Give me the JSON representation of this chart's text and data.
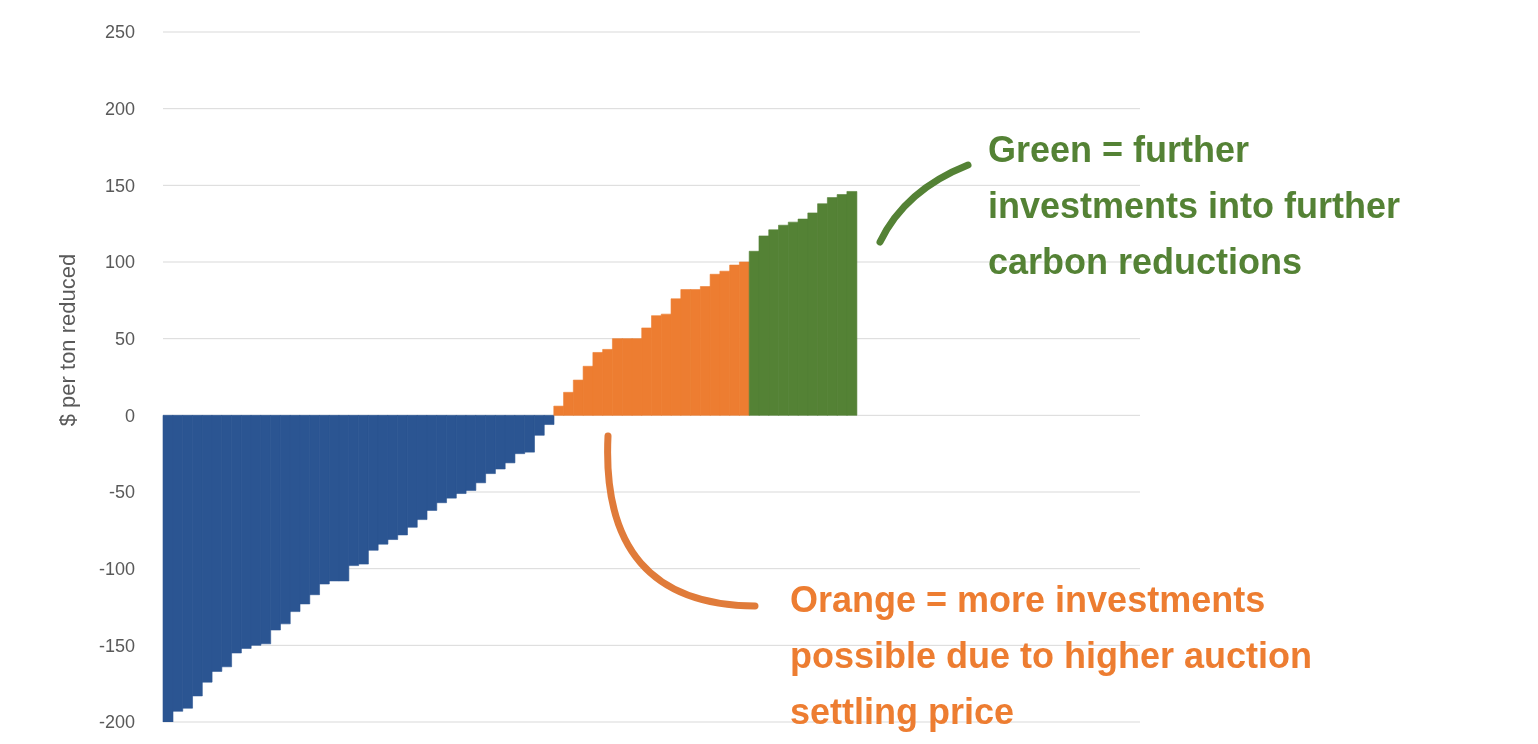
{
  "chart_data": {
    "type": "bar",
    "stacked": true,
    "ylabel": "$ per ton reduced",
    "ylim": [
      -200,
      250
    ],
    "yticks": [
      -200,
      -150,
      -100,
      -50,
      0,
      50,
      100,
      150,
      200,
      250
    ],
    "grid": "y",
    "tick_labels": "y",
    "categories": [
      null,
      null,
      null,
      null,
      null,
      null,
      null,
      null,
      null,
      null,
      null,
      null,
      null,
      null,
      null,
      null,
      null,
      null,
      null,
      null,
      null,
      null,
      null,
      null,
      null,
      null,
      null,
      null,
      null,
      null,
      null,
      null,
      null,
      null,
      null,
      null,
      null,
      null,
      null,
      null,
      null,
      null,
      null,
      null,
      null,
      null,
      null,
      null,
      null,
      null,
      null,
      null,
      null,
      null,
      null,
      null,
      null,
      null,
      null,
      null,
      null,
      null,
      null,
      null,
      null,
      null,
      null,
      null,
      null,
      null,
      null,
      null,
      null,
      null,
      null,
      null,
      null,
      null,
      null,
      null,
      null,
      null,
      null,
      null,
      null,
      null,
      null,
      null,
      null,
      null,
      null,
      null,
      null,
      null,
      null,
      null,
      null,
      null,
      null,
      null
    ],
    "series": [
      {
        "color": "#2b5592",
        "values": [
          -200,
          -193,
          -191,
          -183,
          -174,
          -167,
          -164,
          -155,
          -152,
          -150,
          -149,
          -140,
          -136,
          -128,
          -123,
          -117,
          -110,
          -108,
          -108,
          -98,
          -97,
          -88,
          -84,
          -81,
          -78,
          -73,
          -68,
          -62,
          -57,
          -54,
          -51,
          -49,
          -44,
          -38,
          -35,
          -31,
          -25,
          -24,
          -13,
          -6,
          null,
          null,
          null,
          null,
          null,
          null,
          null,
          null,
          null,
          null,
          null,
          null,
          null,
          null,
          null,
          null,
          null,
          null,
          null,
          null,
          null,
          null,
          null,
          null,
          null,
          null,
          null,
          null,
          null,
          null,
          null,
          null,
          null,
          null,
          null,
          null,
          null,
          null,
          null,
          null,
          null,
          null,
          null,
          null,
          null,
          null,
          null,
          null,
          null,
          null,
          null,
          null,
          null,
          null,
          null,
          null,
          null,
          null,
          null,
          null
        ]
      },
      {
        "color": "#ed7d31",
        "values": [
          null,
          null,
          null,
          null,
          null,
          null,
          null,
          null,
          null,
          null,
          null,
          null,
          null,
          null,
          null,
          null,
          null,
          null,
          null,
          null,
          null,
          null,
          null,
          null,
          null,
          null,
          null,
          null,
          null,
          null,
          null,
          null,
          null,
          null,
          null,
          null,
          null,
          null,
          null,
          null,
          6,
          15,
          23,
          32,
          41,
          43,
          50,
          50,
          50,
          57,
          65,
          66,
          76,
          82,
          82,
          84,
          92,
          94,
          98,
          100,
          null,
          null,
          null,
          null,
          null,
          null,
          null,
          null,
          null,
          null,
          null,
          null,
          null,
          null,
          null,
          null,
          null,
          null,
          null,
          null,
          null,
          null,
          null,
          null,
          null,
          null,
          null,
          null,
          null,
          null,
          null,
          null,
          null,
          null,
          null,
          null,
          null,
          null,
          null,
          null
        ]
      },
      {
        "color": "#548235",
        "values": [
          null,
          null,
          null,
          null,
          null,
          null,
          null,
          null,
          null,
          null,
          null,
          null,
          null,
          null,
          null,
          null,
          null,
          null,
          null,
          null,
          null,
          null,
          null,
          null,
          null,
          null,
          null,
          null,
          null,
          null,
          null,
          null,
          null,
          null,
          null,
          null,
          null,
          null,
          null,
          null,
          null,
          null,
          null,
          null,
          null,
          null,
          null,
          null,
          null,
          null,
          null,
          null,
          null,
          null,
          null,
          null,
          null,
          null,
          null,
          null,
          107,
          117,
          121,
          124,
          126,
          128,
          132,
          138,
          142,
          144,
          146,
          null,
          null,
          null,
          null,
          null,
          null,
          null,
          null,
          null,
          null,
          null,
          null,
          null,
          null,
          null,
          null,
          null,
          null,
          null,
          null,
          null,
          null,
          null,
          null,
          null,
          null,
          null,
          null,
          null
        ]
      }
    ],
    "annotations": [
      "Green = further investments into further carbon reductions",
      "Orange = more investments possible due to higher auction settling price"
    ]
  }
}
